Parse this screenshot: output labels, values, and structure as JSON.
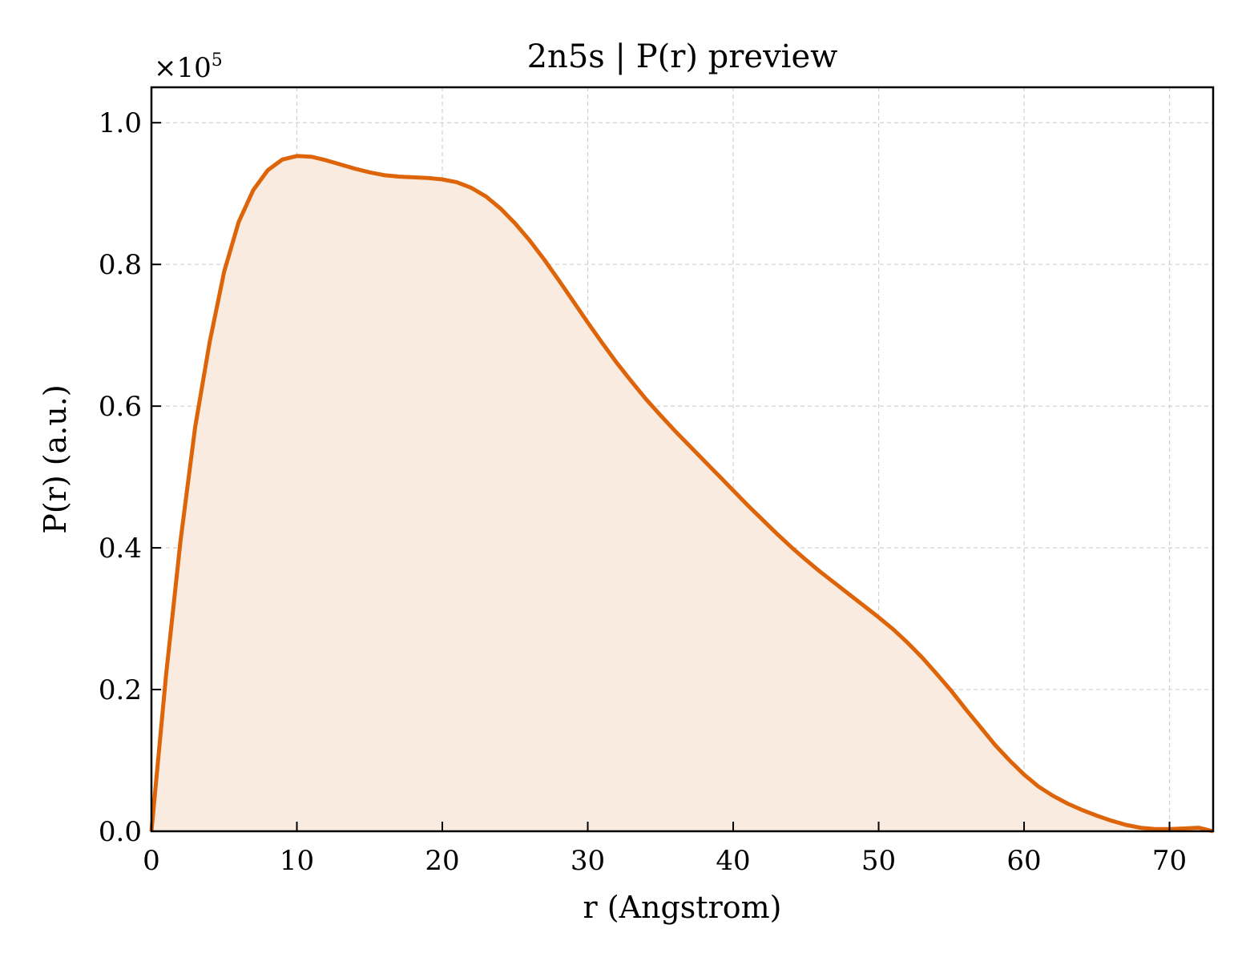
{
  "chart_data": {
    "type": "area",
    "title": "2n5s | P(r) preview",
    "xlabel": "r (Angstrom)",
    "ylabel": "P(r) (a.u.)",
    "y_scale_label": {
      "base": "×10",
      "exponent": "5"
    },
    "xlim": [
      0,
      73
    ],
    "ylim": [
      0,
      1.05
    ],
    "x_ticks": [
      0,
      10,
      20,
      30,
      40,
      50,
      60,
      70
    ],
    "x_tick_labels": [
      "0",
      "10",
      "20",
      "30",
      "40",
      "50",
      "60",
      "70"
    ],
    "y_ticks": [
      0.0,
      0.2,
      0.4,
      0.6,
      0.8,
      1.0
    ],
    "y_tick_labels": [
      "0.0",
      "0.2",
      "0.4",
      "0.6",
      "0.8",
      "1.0"
    ],
    "grid": true,
    "line_color": "#dd6408",
    "fill_color": "#f9ebe0",
    "series": [
      {
        "x": [
          0,
          1,
          2,
          3,
          4,
          5,
          6,
          7,
          8,
          9,
          10,
          11,
          12,
          13,
          14,
          15,
          16,
          17,
          18,
          19,
          20,
          21,
          22,
          23,
          24,
          25,
          26,
          27,
          28,
          29,
          30,
          31,
          32,
          33,
          34,
          35,
          36,
          37,
          38,
          39,
          40,
          41,
          42,
          43,
          44,
          45,
          46,
          47,
          48,
          49,
          50,
          51,
          52,
          53,
          54,
          55,
          56,
          57,
          58,
          59,
          60,
          61,
          62,
          63,
          64,
          65,
          66,
          67,
          68,
          69,
          70,
          71,
          72,
          73
        ],
        "y": [
          0.0,
          0.22,
          0.41,
          0.57,
          0.69,
          0.79,
          0.86,
          0.905,
          0.933,
          0.948,
          0.953,
          0.952,
          0.947,
          0.941,
          0.935,
          0.93,
          0.926,
          0.924,
          0.923,
          0.922,
          0.92,
          0.916,
          0.908,
          0.896,
          0.879,
          0.858,
          0.834,
          0.807,
          0.778,
          0.748,
          0.718,
          0.689,
          0.661,
          0.635,
          0.61,
          0.587,
          0.565,
          0.544,
          0.523,
          0.502,
          0.481,
          0.46,
          0.44,
          0.42,
          0.401,
          0.383,
          0.366,
          0.35,
          0.334,
          0.318,
          0.302,
          0.285,
          0.266,
          0.245,
          0.222,
          0.198,
          0.172,
          0.147,
          0.122,
          0.1,
          0.08,
          0.063,
          0.05,
          0.039,
          0.03,
          0.022,
          0.015,
          0.009,
          0.005,
          0.003,
          0.003,
          0.004,
          0.005,
          0.0
        ]
      }
    ]
  }
}
